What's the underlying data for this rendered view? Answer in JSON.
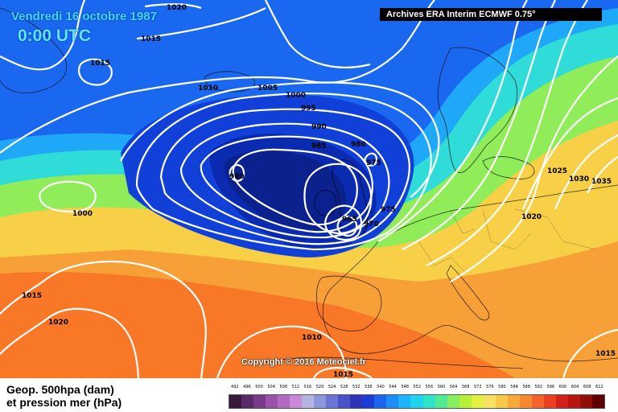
{
  "header": {
    "date": "Vendredi 16 octobre 1987",
    "time": "0:00 UTC"
  },
  "archive_label": "Archives ERA Interim ECMWF 0.75°",
  "copyright": "Copyright © 2016 Meteociel.fr",
  "legend": {
    "title_line1": "Geop. 500hpa (dam)",
    "title_line2": "et pression mer (hPa)",
    "scale_values": [
      "492",
      "496",
      "500",
      "504",
      "508",
      "512",
      "516",
      "520",
      "524",
      "528",
      "532",
      "536",
      "540",
      "544",
      "548",
      "552",
      "556",
      "560",
      "564",
      "568",
      "572",
      "576",
      "580",
      "584",
      "588",
      "592",
      "596",
      "600",
      "604",
      "608",
      "612"
    ],
    "scale_colors": [
      "#3a1a3a",
      "#5a2a6a",
      "#7a3a8a",
      "#9a52aa",
      "#b46ac0",
      "#c88ad8",
      "#b4b4e0",
      "#8c96dc",
      "#6a74d4",
      "#4a52c8",
      "#2c34b8",
      "#1c3cd8",
      "#1c64f0",
      "#1c8cf8",
      "#1cb4fc",
      "#20d4f0",
      "#30e4c8",
      "#50ec94",
      "#84f060",
      "#b8f038",
      "#e4f040",
      "#f8e060",
      "#f8c848",
      "#f8a838",
      "#f88830",
      "#f46428",
      "#e84020",
      "#d42018",
      "#b81410",
      "#901008",
      "#600000"
    ]
  },
  "isobar_labels": [
    "1020",
    "1015",
    "1015",
    "1010",
    "1005",
    "1000",
    "995",
    "990",
    "985",
    "980",
    "975",
    "980",
    "970",
    "965",
    "975",
    "1000",
    "1015",
    "1020",
    "1010",
    "1015",
    "1025",
    "1030",
    "1035",
    "1020",
    "1015"
  ]
}
